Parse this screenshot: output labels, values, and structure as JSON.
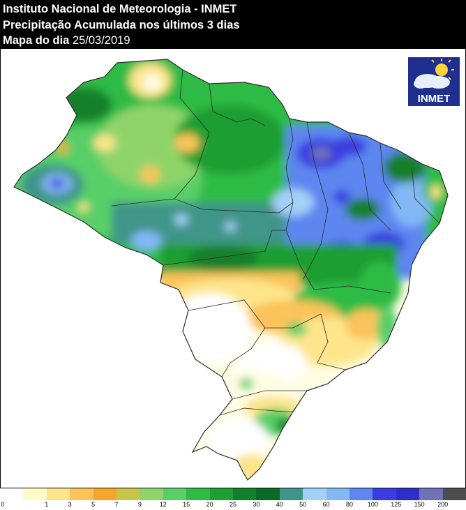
{
  "header": {
    "line1": "Instituto Nacional de Meteorologia - INMET",
    "line2": "Precipitação Acumulada nos últimos 3 dias",
    "line3_prefix": "Mapa do dia",
    "date": "25/03/2019"
  },
  "logo": {
    "text": "INMET",
    "icon": "sun-cloud-icon"
  },
  "legend": {
    "ticks": [
      "0",
      "1",
      "3",
      "5",
      "7",
      "9",
      "12",
      "15",
      "20",
      "25",
      "30",
      "40",
      "50",
      "60",
      "80",
      "100",
      "125",
      "150",
      "200"
    ],
    "colors": [
      "#ffffff",
      "#fefbc8",
      "#fde58c",
      "#fbc35a",
      "#f7a62b",
      "#c7c646",
      "#8fd46a",
      "#58cf67",
      "#2fbb45",
      "#1f9e31",
      "#137f2b",
      "#0b6a25",
      "#3f9589",
      "#a2d0f7",
      "#82b8f6",
      "#5d86f0",
      "#3a3ee0",
      "#2d2fc8",
      "#6f72b8",
      "#4d4d4d"
    ]
  }
}
